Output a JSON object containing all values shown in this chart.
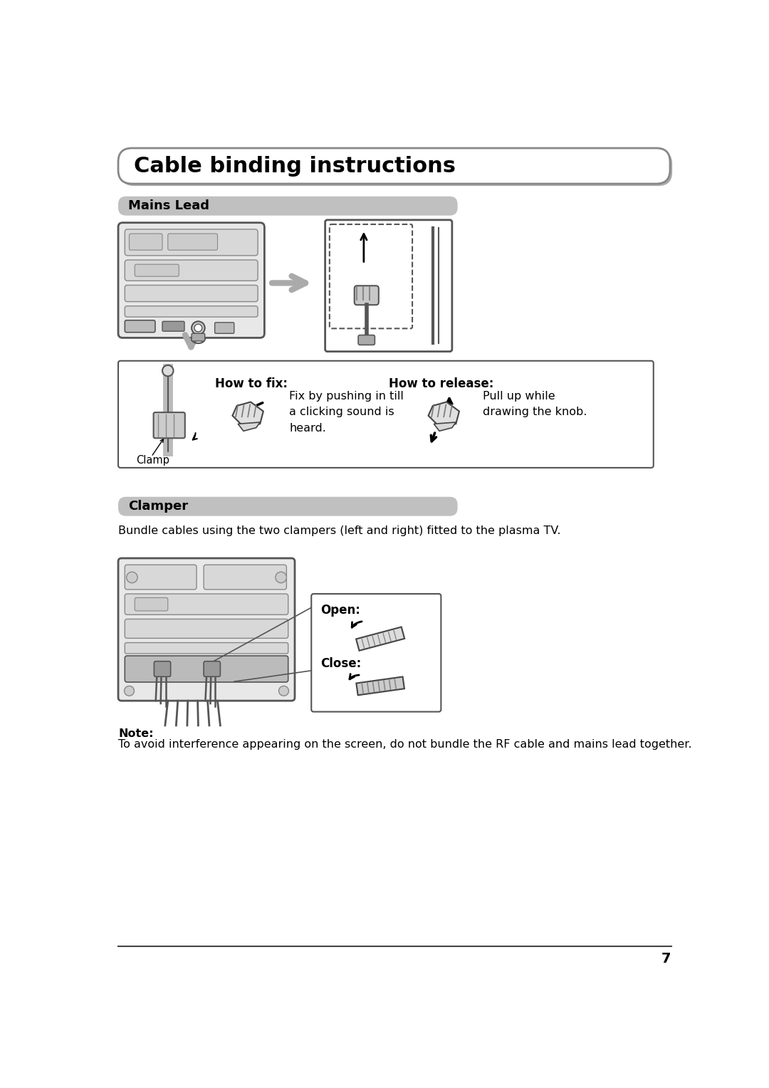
{
  "page_bg": "#ffffff",
  "title": "Cable binding instructions",
  "title_fontsize": 22,
  "section1_label": "Mains Lead",
  "section1_bg": "#c0c0c0",
  "section2_label": "Clamper",
  "section2_bg": "#c0c0c0",
  "section_fontsize": 13,
  "how_to_fix_title": "How to fix:",
  "how_to_release_title": "How to release:",
  "fix_text": "Fix by pushing in till\na clicking sound is\nheard.",
  "release_text": "Pull up while\ndrawing the knob.",
  "clamp_label": "Clamp",
  "bundle_text": "Bundle cables using the two clampers (left and right) fitted to the plasma TV.",
  "open_label": "Open:",
  "close_label": "Close:",
  "note_bold": "Note:",
  "note_text": "To avoid interference appearing on the screen, do not bundle the RF cable and mains lead together.",
  "page_number": "7",
  "body_fontsize": 11.5,
  "gray_tv": "#d8d8d8",
  "dark_gray": "#555555",
  "mid_gray": "#888888",
  "light_gray": "#e8e8e8"
}
